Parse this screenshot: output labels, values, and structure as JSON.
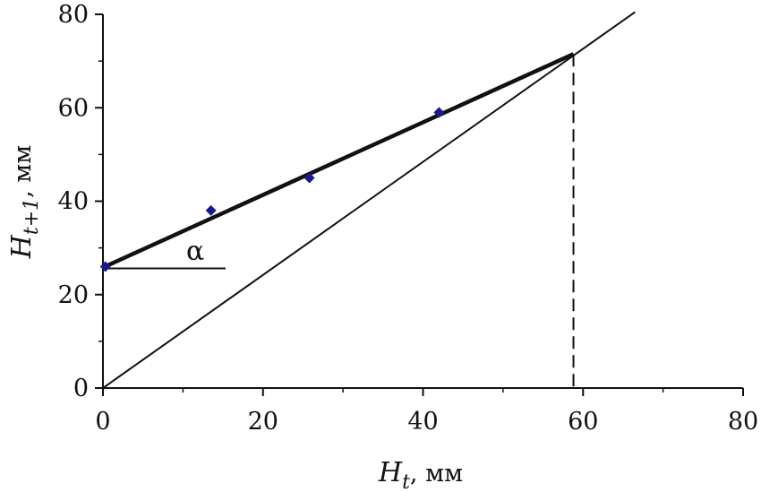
{
  "chart_data": {
    "type": "scatter",
    "xlabel": {
      "main": "H",
      "sub": "t",
      "unit": ", мм"
    },
    "ylabel": {
      "main": "H",
      "sub": "t+1",
      "unit": ", мм"
    },
    "xlim": [
      0,
      80
    ],
    "ylim": [
      0,
      80
    ],
    "x_ticks": [
      "0",
      "20",
      "40",
      "60",
      "80"
    ],
    "y_ticks": [
      "0",
      "20",
      "40",
      "60",
      "80"
    ],
    "grid": false,
    "points": [
      {
        "x": 0.3,
        "y": 26
      },
      {
        "x": 13.5,
        "y": 38
      },
      {
        "x": 25.8,
        "y": 45
      },
      {
        "x": 42,
        "y": 59
      }
    ],
    "fit_line": {
      "x": [
        0,
        58.8
      ],
      "y": [
        25.8,
        71.5
      ]
    },
    "identity_line": {
      "x": [
        0,
        66.5
      ],
      "y": [
        0,
        80.5
      ]
    },
    "equilibrium": {
      "x": 58.8,
      "y": 71.5
    },
    "angle_label": "α",
    "marker_color": "#1a1a8c",
    "line_color": "#111111"
  }
}
